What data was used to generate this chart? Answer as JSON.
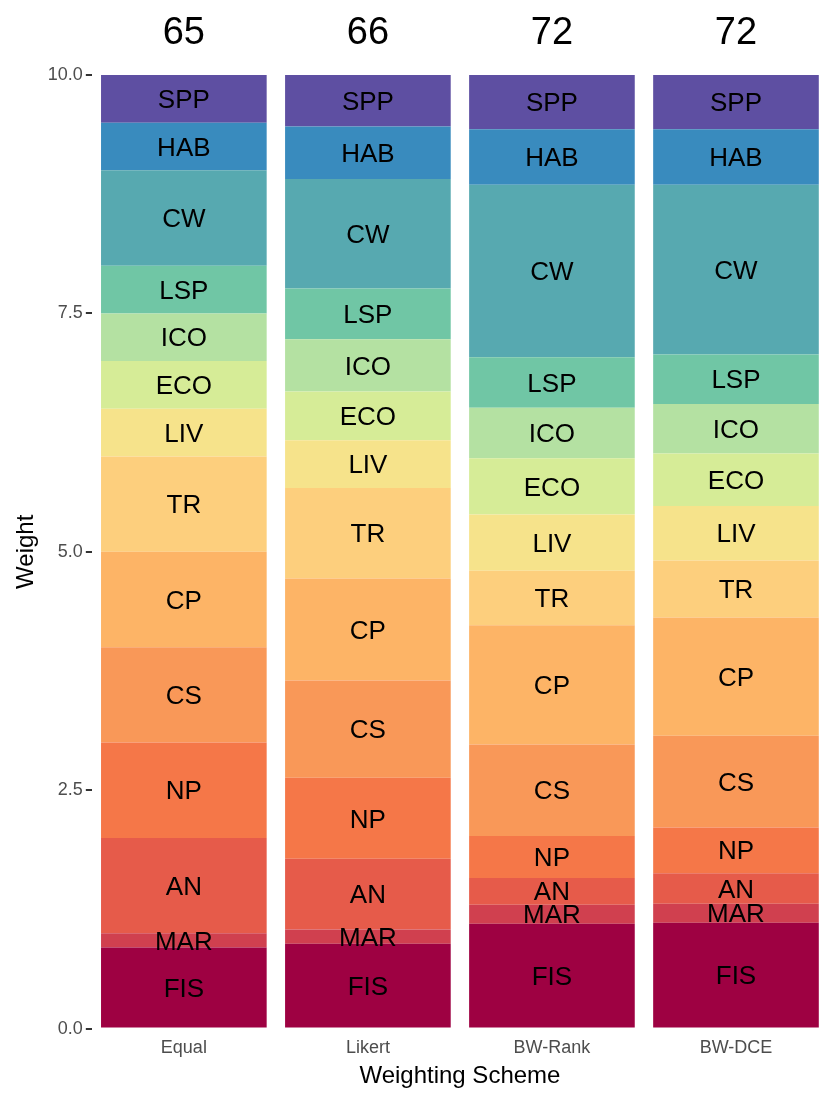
{
  "chart_data": {
    "type": "bar",
    "stacked": true,
    "xlabel": "Weighting Scheme",
    "ylabel": "Weight",
    "categories": [
      "Equal",
      "Likert",
      "BW-Rank",
      "BW-DCE"
    ],
    "ylim": [
      0,
      10
    ],
    "yticks": [
      {
        "value": 0,
        "label": "0.0"
      },
      {
        "value": 2.5,
        "label": "2.5"
      },
      {
        "value": 5,
        "label": "5.0"
      },
      {
        "value": 7.5,
        "label": "7.5"
      },
      {
        "value": 10,
        "label": "10.0"
      }
    ],
    "grid": false,
    "legend": false,
    "annotations": [
      "65",
      "66",
      "72",
      "72"
    ],
    "series": [
      {
        "name": "FIS",
        "color": "#9e0142",
        "values": [
          0.85,
          0.89,
          1.1,
          1.11
        ]
      },
      {
        "name": "MAR",
        "color": "#d0404f",
        "values": [
          0.15,
          0.15,
          0.2,
          0.2
        ]
      },
      {
        "name": "AN",
        "color": "#e65b4a",
        "values": [
          1.0,
          0.74,
          0.28,
          0.32
        ]
      },
      {
        "name": "NP",
        "color": "#f57748",
        "values": [
          1.0,
          0.85,
          0.44,
          0.48
        ]
      },
      {
        "name": "CS",
        "color": "#f99858",
        "values": [
          1.0,
          1.02,
          0.96,
          0.96
        ]
      },
      {
        "name": "CP",
        "color": "#fdb466",
        "values": [
          1.0,
          1.07,
          1.25,
          1.24
        ]
      },
      {
        "name": "TR",
        "color": "#fdcf7d",
        "values": [
          1.0,
          0.95,
          0.57,
          0.6
        ]
      },
      {
        "name": "LIV",
        "color": "#f6e38b",
        "values": [
          0.5,
          0.5,
          0.59,
          0.57
        ]
      },
      {
        "name": "ECO",
        "color": "#d6ec97",
        "values": [
          0.5,
          0.51,
          0.59,
          0.55
        ]
      },
      {
        "name": "ICO",
        "color": "#b4e1a2",
        "values": [
          0.5,
          0.55,
          0.53,
          0.52
        ]
      },
      {
        "name": "LSP",
        "color": "#70c6a5",
        "values": [
          0.5,
          0.53,
          0.53,
          0.52
        ]
      },
      {
        "name": "CW",
        "color": "#57a9b0",
        "values": [
          1.0,
          1.15,
          1.81,
          1.78
        ]
      },
      {
        "name": "HAB",
        "color": "#398bbe",
        "values": [
          0.5,
          0.55,
          0.58,
          0.58
        ]
      },
      {
        "name": "SPP",
        "color": "#5e4fa2",
        "values": [
          0.5,
          0.54,
          0.57,
          0.57
        ]
      }
    ]
  }
}
